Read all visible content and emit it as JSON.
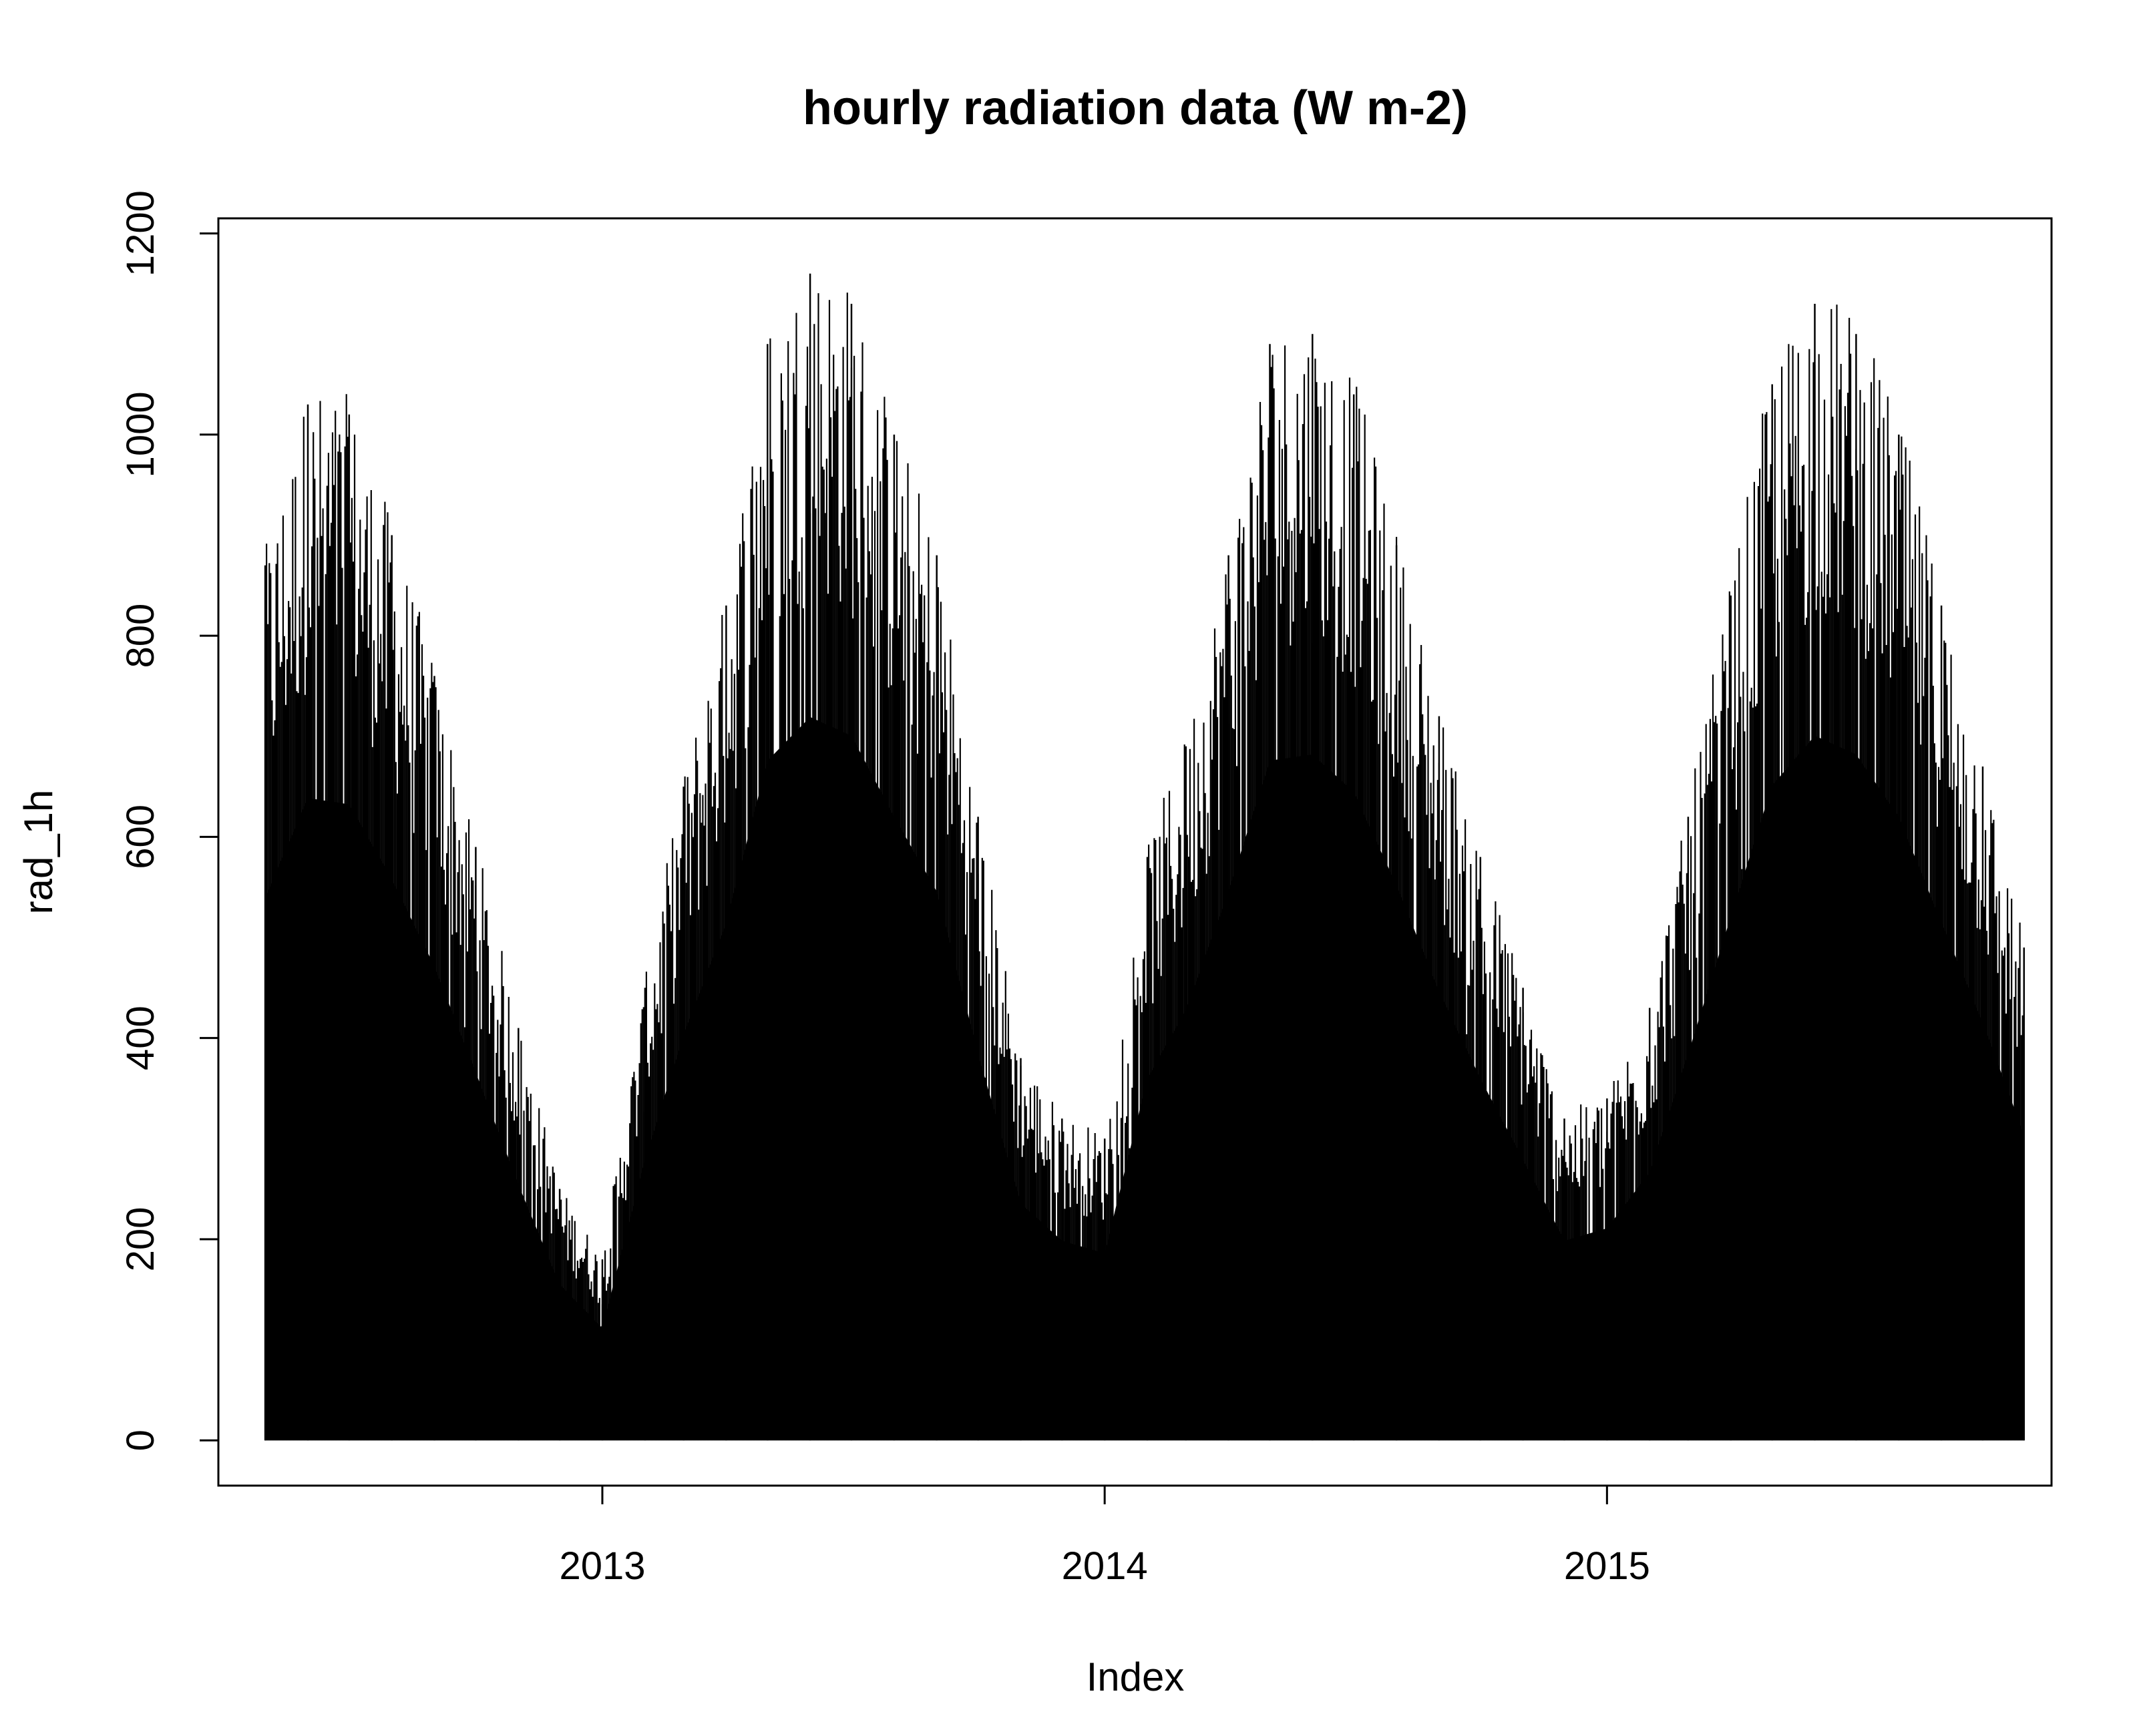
{
  "chart_data": {
    "type": "line",
    "title": "hourly radiation data (W m-2)",
    "xlabel": "Index",
    "ylabel": "rad_1h",
    "plot_style": "vertical lines (type h)",
    "line_color": "#000000",
    "x_unit": "date",
    "xlim": [
      "2012-03-28",
      "2015-11-20"
    ],
    "ylim": [
      -45,
      1215
    ],
    "x_ticks": [
      {
        "value": "2013-01-01",
        "label": "2013"
      },
      {
        "value": "2014-01-01",
        "label": "2014"
      },
      {
        "value": "2015-01-01",
        "label": "2015"
      }
    ],
    "y_ticks": [
      {
        "value": 0,
        "label": "0"
      },
      {
        "value": 200,
        "label": "200"
      },
      {
        "value": 400,
        "label": "400"
      },
      {
        "value": 600,
        "label": "600"
      },
      {
        "value": 800,
        "label": "800"
      },
      {
        "value": 1000,
        "label": "1000"
      },
      {
        "value": 1200,
        "label": "1200"
      }
    ],
    "grid": false,
    "legend": "none",
    "series": [
      {
        "x": [
          "2012-05-01",
          "2012-06-01",
          "2012-07-01",
          "2012-08-01",
          "2012-09-01",
          "2012-10-01",
          "2012-11-01",
          "2012-12-01",
          "2013-01-01",
          "2013-02-01",
          "2013-03-01",
          "2013-04-01",
          "2013-05-01",
          "2013-06-01",
          "2013-07-01",
          "2013-08-01",
          "2013-09-01",
          "2013-10-01",
          "2013-11-01",
          "2013-12-01",
          "2014-01-01",
          "2014-02-01",
          "2014-03-01",
          "2014-04-01",
          "2014-05-01",
          "2014-06-01",
          "2014-07-01",
          "2014-08-01",
          "2014-09-01",
          "2014-10-01",
          "2014-11-01",
          "2014-12-01",
          "2015-01-01",
          "2015-02-01",
          "2015-03-01",
          "2015-04-01",
          "2015-05-01",
          "2015-06-01",
          "2015-07-01",
          "2015-08-01",
          "2015-09-01",
          "2015-10-01",
          "2015-10-31"
        ],
        "y": [
          870,
          1030,
          1020,
          900,
          760,
          590,
          410,
          250,
          180,
          450,
          650,
          830,
          1090,
          1160,
          1130,
          1000,
          880,
          620,
          380,
          320,
          300,
          580,
          690,
          880,
          1090,
          1100,
          1040,
          890,
          720,
          580,
          450,
          320,
          340,
          430,
          620,
          840,
          1050,
          1130,
          1100,
          1000,
          830,
          670,
          490
        ]
      }
    ]
  }
}
